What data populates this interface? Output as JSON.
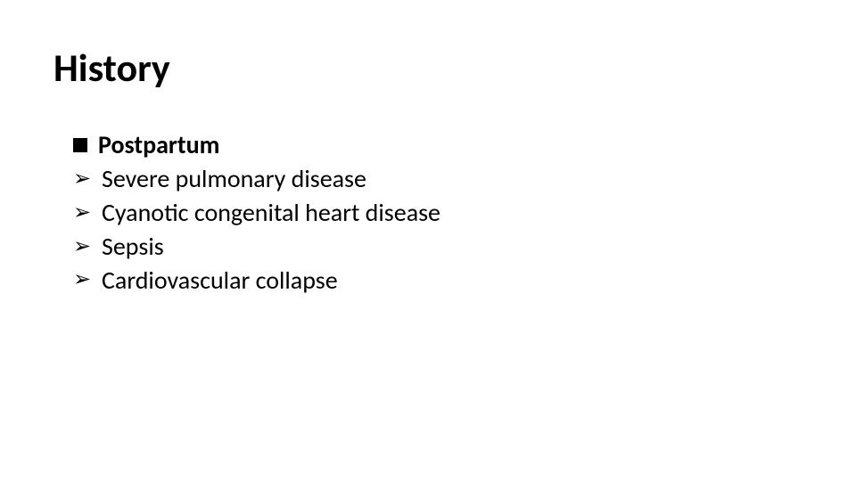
{
  "slide": {
    "title": "History",
    "background_color": "#ffffff",
    "text_color": "#000000",
    "title_fontsize_pt": 33,
    "body_fontsize_pt": 21,
    "section": {
      "bullet": "square",
      "bullet_color": "#000000",
      "label": "Postpartum",
      "bold": true
    },
    "items": [
      {
        "bullet": "arrow",
        "label": "Severe pulmonary disease"
      },
      {
        "bullet": "arrow",
        "label": "Cyanotic congenital heart disease"
      },
      {
        "bullet": "arrow",
        "label": "Sepsis"
      },
      {
        "bullet": "arrow",
        "label": "Cardiovascular collapse"
      }
    ],
    "arrow_glyph": "➢"
  }
}
